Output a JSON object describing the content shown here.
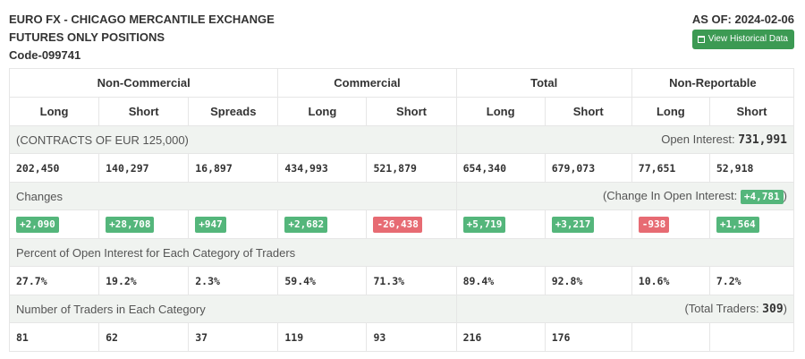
{
  "header": {
    "title_line1": "EURO FX - CHICAGO MERCANTILE EXCHANGE",
    "title_line2": "FUTURES ONLY POSITIONS",
    "title_line3": "Code-099741",
    "as_of": "AS OF: 2024-02-06",
    "history_button": "View Historical Data"
  },
  "groups": [
    "Non-Commercial",
    "Commercial",
    "Total",
    "Non-Reportable"
  ],
  "columns": [
    "Long",
    "Short",
    "Spreads",
    "Long",
    "Short",
    "Long",
    "Short",
    "Long",
    "Short"
  ],
  "contracts": {
    "label": "(CONTRACTS OF EUR 125,000)",
    "oi_label": "Open Interest: ",
    "oi_value": "731,991",
    "values": [
      "202,450",
      "140,297",
      "16,897",
      "434,993",
      "521,879",
      "654,340",
      "679,073",
      "77,651",
      "52,918"
    ]
  },
  "changes": {
    "label": "Changes",
    "oi_prefix": "(Change In Open Interest: ",
    "oi_value": "+4,781",
    "oi_suffix": ")",
    "values": [
      "+2,090",
      "+28,708",
      "+947",
      "+2,682",
      "-26,438",
      "+5,719",
      "+3,217",
      "-938",
      "+1,564"
    ]
  },
  "percent": {
    "label": "Percent of Open Interest for Each Category of Traders",
    "values": [
      "27.7%",
      "19.2%",
      "2.3%",
      "59.4%",
      "71.3%",
      "89.4%",
      "92.8%",
      "10.6%",
      "7.2%"
    ]
  },
  "traders": {
    "label": "Number of Traders in Each Category",
    "total_prefix": "(Total Traders: ",
    "total_value": "309",
    "total_suffix": ")",
    "values": [
      "81",
      "62",
      "37",
      "119",
      "93",
      "216",
      "176",
      "",
      ""
    ]
  },
  "colors": {
    "positive": "#54b67b",
    "negative": "#e76b73",
    "button": "#3c9a53",
    "section_bg": "#f0f3f0"
  }
}
